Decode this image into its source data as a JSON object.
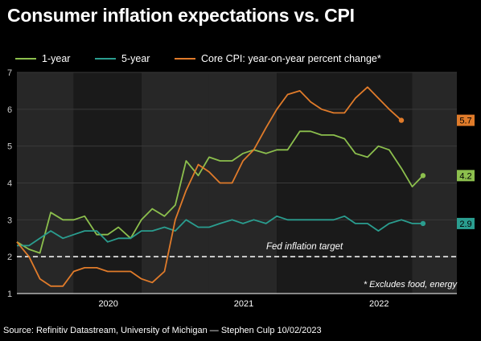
{
  "title": "Consumer inflation expectations vs. CPI",
  "source": "Source: Refinitiv Datastream, University of Michigan — Stephen Culp 10/02/2023",
  "chart_data": {
    "type": "line",
    "ylim": [
      1,
      7
    ],
    "yticks": [
      1,
      2,
      3,
      4,
      5,
      6,
      7
    ],
    "xlim": [
      2019.58,
      2022.83
    ],
    "xtick_labels": [
      {
        "label": "2020",
        "x": 2020.0
      },
      {
        "label": "2021",
        "x": 2021.0
      },
      {
        "label": "2022",
        "x": 2022.0
      }
    ],
    "year_bands": [
      {
        "from": 2019.58,
        "to": 2020.0,
        "shade": "light"
      },
      {
        "from": 2020.0,
        "to": 2020.5,
        "shade": "dark"
      },
      {
        "from": 2020.5,
        "to": 2021.0,
        "shade": "light"
      },
      {
        "from": 2021.0,
        "to": 2021.5,
        "shade": "light"
      },
      {
        "from": 2021.5,
        "to": 2022.5,
        "shade": "dark"
      },
      {
        "from": 2022.5,
        "to": 2022.83,
        "shade": "light"
      }
    ],
    "grid": "horizontal",
    "legend_position": "top",
    "reference_line": {
      "y": 2.0,
      "label": "Fed inflation target",
      "color": "#ffffff"
    },
    "footnote": "* Excludes food, energy",
    "series": [
      {
        "name": "1-year",
        "color": "#8cbf4d",
        "end_label": "4.2",
        "points": [
          [
            2019.58,
            2.4
          ],
          [
            2019.67,
            2.2
          ],
          [
            2019.75,
            2.1
          ],
          [
            2019.83,
            3.2
          ],
          [
            2019.92,
            3.0
          ],
          [
            2020.0,
            3.0
          ],
          [
            2020.08,
            3.1
          ],
          [
            2020.17,
            2.6
          ],
          [
            2020.25,
            2.6
          ],
          [
            2020.33,
            2.8
          ],
          [
            2020.42,
            2.5
          ],
          [
            2020.5,
            3.0
          ],
          [
            2020.58,
            3.3
          ],
          [
            2020.67,
            3.1
          ],
          [
            2020.75,
            3.4
          ],
          [
            2020.83,
            4.6
          ],
          [
            2020.92,
            4.2
          ],
          [
            2021.0,
            4.7
          ],
          [
            2021.08,
            4.6
          ],
          [
            2021.17,
            4.6
          ],
          [
            2021.25,
            4.8
          ],
          [
            2021.33,
            4.9
          ],
          [
            2021.42,
            4.8
          ],
          [
            2021.5,
            4.9
          ],
          [
            2021.58,
            4.9
          ],
          [
            2021.67,
            5.4
          ],
          [
            2021.75,
            5.4
          ],
          [
            2021.83,
            5.3
          ],
          [
            2021.92,
            5.3
          ],
          [
            2022.0,
            5.2
          ],
          [
            2022.08,
            4.8
          ],
          [
            2022.17,
            4.7
          ],
          [
            2022.25,
            5.0
          ],
          [
            2022.33,
            4.9
          ],
          [
            2022.42,
            4.4
          ],
          [
            2022.5,
            3.9
          ],
          [
            2022.58,
            4.2
          ]
        ]
      },
      {
        "name": "5-year",
        "color": "#2a9d8f",
        "end_label": "2.9",
        "points": [
          [
            2019.58,
            2.3
          ],
          [
            2019.67,
            2.3
          ],
          [
            2019.75,
            2.5
          ],
          [
            2019.83,
            2.7
          ],
          [
            2019.92,
            2.5
          ],
          [
            2020.0,
            2.6
          ],
          [
            2020.08,
            2.7
          ],
          [
            2020.17,
            2.7
          ],
          [
            2020.25,
            2.4
          ],
          [
            2020.33,
            2.5
          ],
          [
            2020.42,
            2.5
          ],
          [
            2020.5,
            2.7
          ],
          [
            2020.58,
            2.7
          ],
          [
            2020.67,
            2.8
          ],
          [
            2020.75,
            2.7
          ],
          [
            2020.83,
            3.0
          ],
          [
            2020.92,
            2.8
          ],
          [
            2021.0,
            2.8
          ],
          [
            2021.08,
            2.9
          ],
          [
            2021.17,
            3.0
          ],
          [
            2021.25,
            2.9
          ],
          [
            2021.33,
            3.0
          ],
          [
            2021.42,
            2.9
          ],
          [
            2021.5,
            3.1
          ],
          [
            2021.58,
            3.0
          ],
          [
            2021.67,
            3.0
          ],
          [
            2021.75,
            3.0
          ],
          [
            2021.83,
            3.0
          ],
          [
            2021.92,
            3.0
          ],
          [
            2022.0,
            3.1
          ],
          [
            2022.08,
            2.9
          ],
          [
            2022.17,
            2.9
          ],
          [
            2022.25,
            2.7
          ],
          [
            2022.33,
            2.9
          ],
          [
            2022.42,
            3.0
          ],
          [
            2022.5,
            2.9
          ],
          [
            2022.58,
            2.9
          ]
        ]
      },
      {
        "name": "Core CPI: year-on-year percent change*",
        "color": "#e07b2a",
        "end_label": "5.7",
        "points": [
          [
            2019.58,
            2.4
          ],
          [
            2019.67,
            2.0
          ],
          [
            2019.75,
            1.4
          ],
          [
            2019.83,
            1.2
          ],
          [
            2019.92,
            1.2
          ],
          [
            2020.0,
            1.6
          ],
          [
            2020.08,
            1.7
          ],
          [
            2020.17,
            1.7
          ],
          [
            2020.25,
            1.6
          ],
          [
            2020.33,
            1.6
          ],
          [
            2020.42,
            1.6
          ],
          [
            2020.5,
            1.4
          ],
          [
            2020.58,
            1.3
          ],
          [
            2020.67,
            1.6
          ],
          [
            2020.75,
            3.0
          ],
          [
            2020.83,
            3.8
          ],
          [
            2020.92,
            4.5
          ],
          [
            2021.0,
            4.3
          ],
          [
            2021.08,
            4.0
          ],
          [
            2021.17,
            4.0
          ],
          [
            2021.25,
            4.6
          ],
          [
            2021.33,
            4.9
          ],
          [
            2021.42,
            5.5
          ],
          [
            2021.5,
            6.0
          ],
          [
            2021.58,
            6.4
          ],
          [
            2021.67,
            6.5
          ],
          [
            2021.75,
            6.2
          ],
          [
            2021.83,
            6.0
          ],
          [
            2021.92,
            5.9
          ],
          [
            2022.0,
            5.9
          ],
          [
            2022.08,
            6.3
          ],
          [
            2022.17,
            6.6
          ],
          [
            2022.25,
            6.3
          ],
          [
            2022.33,
            6.0
          ],
          [
            2022.42,
            5.7
          ]
        ]
      }
    ]
  }
}
